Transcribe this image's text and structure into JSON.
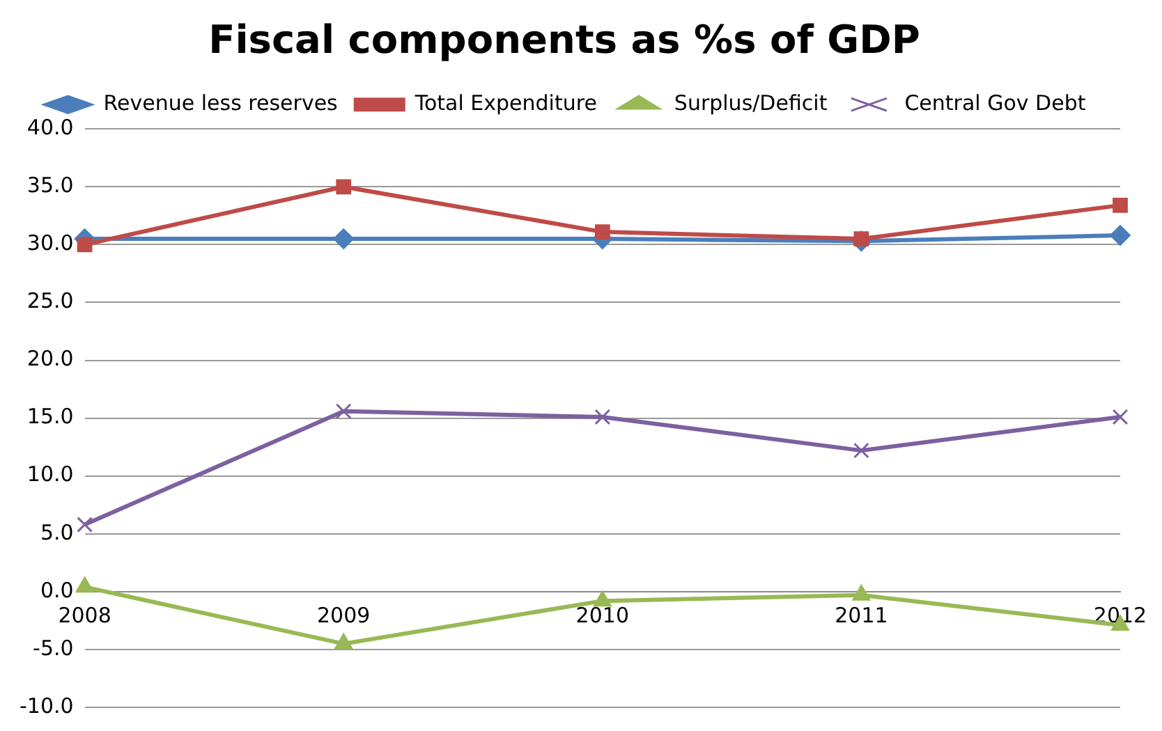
{
  "chart_data": {
    "type": "line",
    "title": "Fiscal components as %s of GDP",
    "categories": [
      "2008",
      "2009",
      "2010",
      "2011",
      "2012"
    ],
    "series": [
      {
        "name": "Revenue less reserves",
        "color": "#4a7ebb",
        "marker": "diamond",
        "values": [
          30.5,
          30.5,
          30.5,
          30.3,
          30.8
        ]
      },
      {
        "name": "Total Expenditure",
        "color": "#be4b48",
        "marker": "square",
        "values": [
          30.0,
          35.0,
          31.1,
          30.5,
          33.4
        ]
      },
      {
        "name": "Surplus/Deficit",
        "color": "#98b954",
        "marker": "triangle",
        "values": [
          0.4,
          -4.5,
          -0.8,
          -0.3,
          -2.9
        ]
      },
      {
        "name": "Central Gov Debt",
        "color": "#7d60a0",
        "marker": "cross",
        "values": [
          5.8,
          15.6,
          15.1,
          12.2,
          15.1
        ]
      }
    ],
    "ylim": [
      -10,
      40
    ],
    "yticks": [
      {
        "value": -10,
        "label": "-10.0"
      },
      {
        "value": -5,
        "label": "-5.0"
      },
      {
        "value": 0,
        "label": "0.0"
      },
      {
        "value": 5,
        "label": "5.0"
      },
      {
        "value": 10,
        "label": "10.0"
      },
      {
        "value": 15,
        "label": "15.0"
      },
      {
        "value": 20,
        "label": "20.0"
      },
      {
        "value": 25,
        "label": "25.0"
      },
      {
        "value": 30,
        "label": "30.0"
      },
      {
        "value": 35,
        "label": "35.0"
      },
      {
        "value": 40,
        "label": "40.0"
      }
    ],
    "grid": "y",
    "legend": "top"
  }
}
